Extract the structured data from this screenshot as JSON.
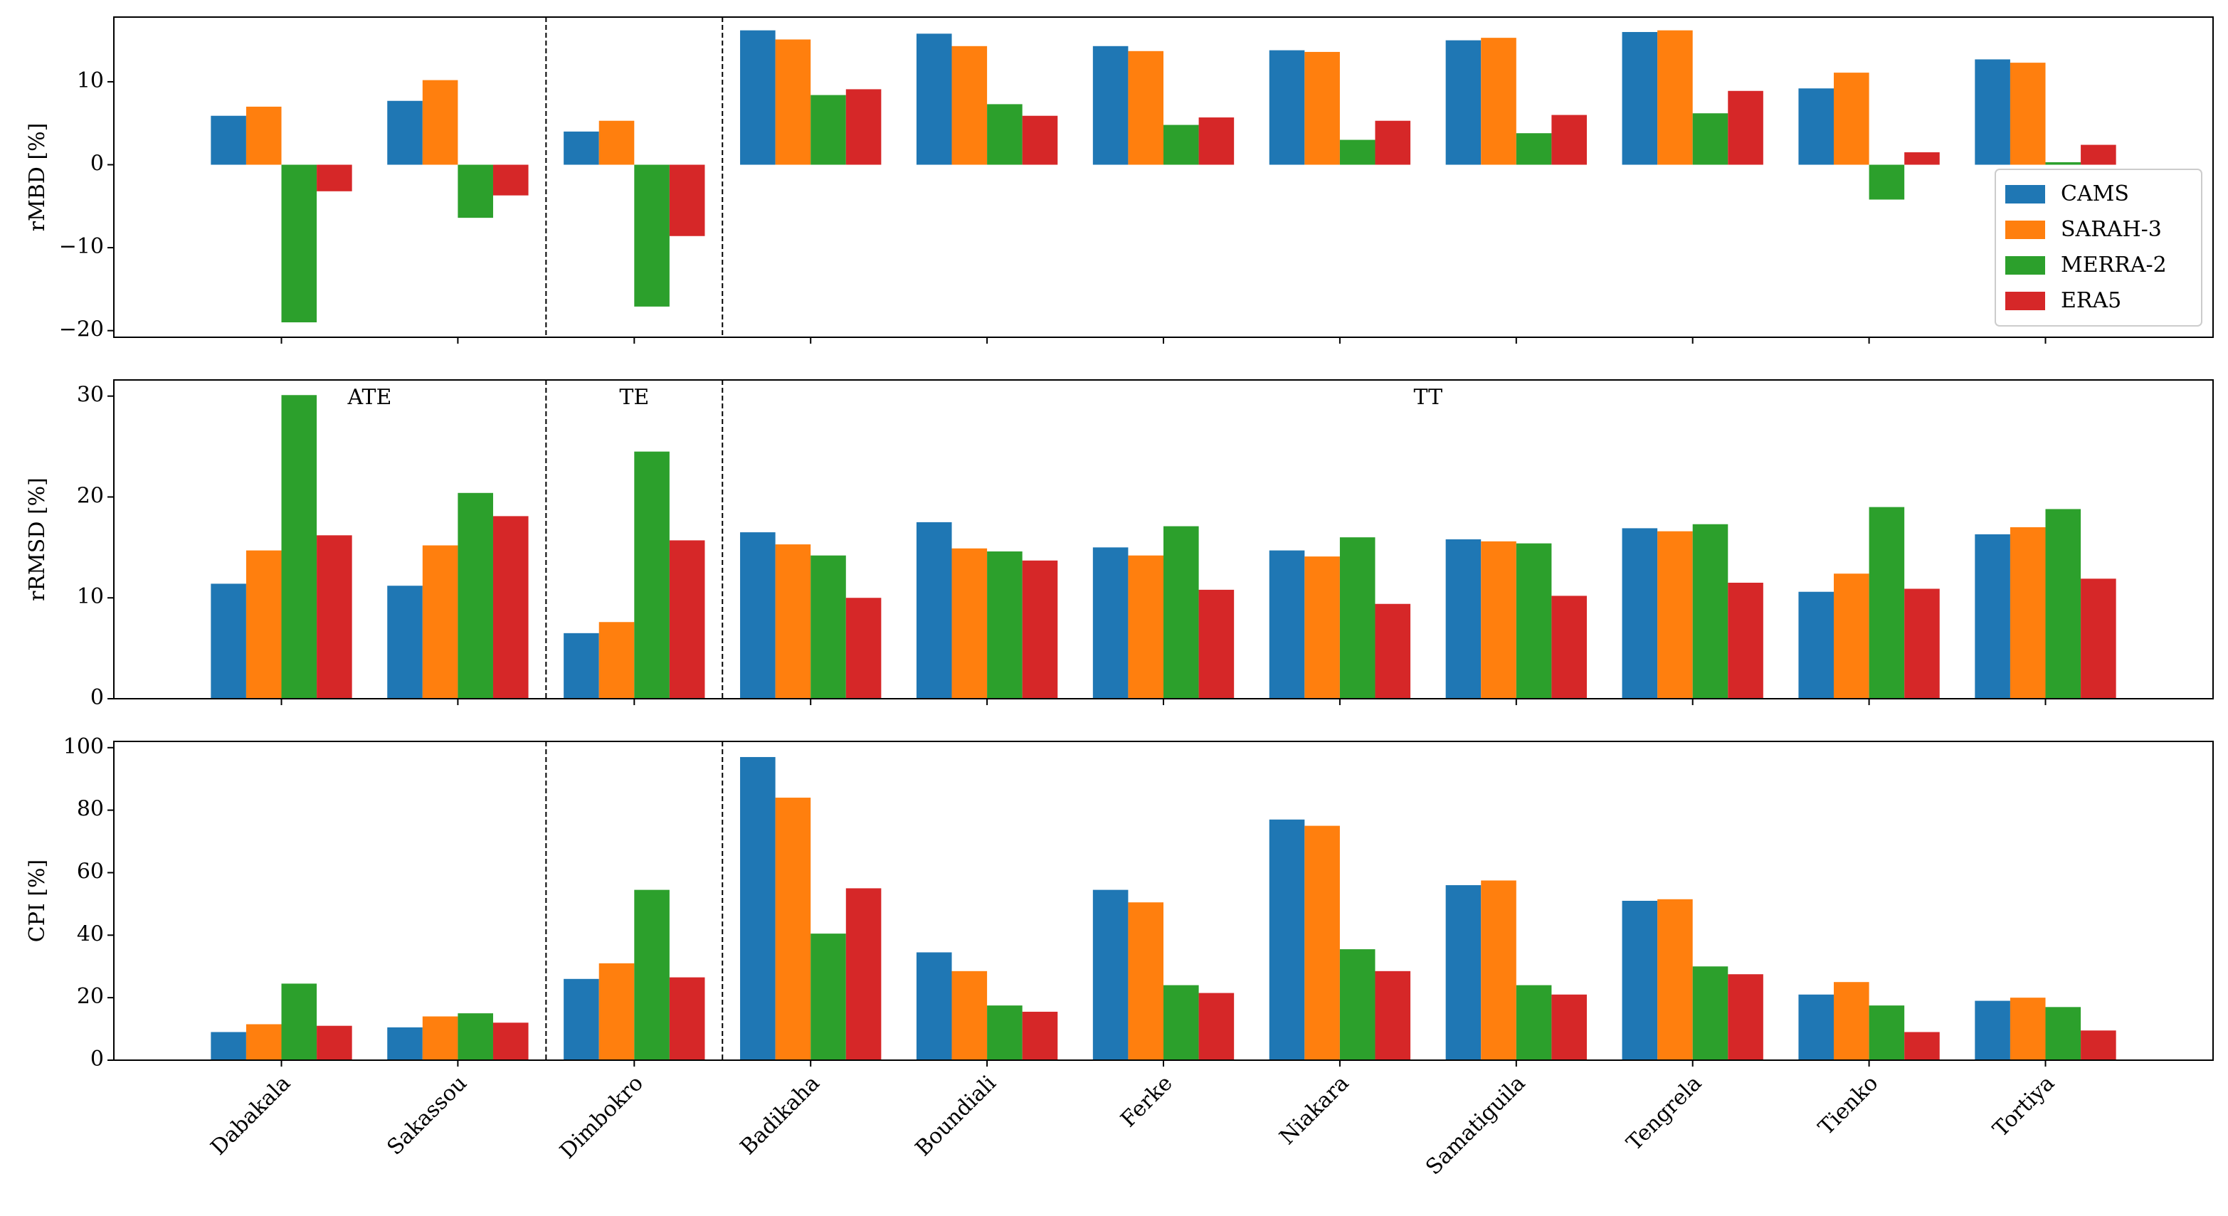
{
  "chart_data": {
    "type": "bar",
    "categories": [
      "Dabakala",
      "Sakassou",
      "Dimbokro",
      "Badikaha",
      "Boundiali",
      "Ferke",
      "Niakara",
      "Samatiguila",
      "Tengrela",
      "Tienko",
      "Tortiya"
    ],
    "groups": [
      {
        "label": "ATE",
        "count": 2
      },
      {
        "label": "TE",
        "count": 1
      },
      {
        "label": "TT",
        "count": 8
      }
    ],
    "legend_loc": "lower right",
    "series": [
      {
        "name": "CAMS",
        "color": "#1f77b4"
      },
      {
        "name": "SARAH-3",
        "color": "#ff7f0e"
      },
      {
        "name": "MERRA-2",
        "color": "#2ca02c"
      },
      {
        "name": "ERA5",
        "color": "#d62728"
      }
    ],
    "panels": [
      {
        "ylabel": "rMBD [%]",
        "ylim": [
          -20.8,
          17.8
        ],
        "yticks": [
          {
            "value": -20,
            "label": "−20"
          },
          {
            "value": -10,
            "label": "−10"
          },
          0,
          10
        ],
        "values": [
          [
            5.9,
            7.7,
            4.0,
            16.2,
            15.8,
            14.3,
            13.8,
            15.0,
            16.0,
            9.2,
            12.7
          ],
          [
            7.0,
            10.2,
            5.3,
            15.1,
            14.3,
            13.7,
            13.6,
            15.3,
            16.2,
            11.1,
            12.3
          ],
          [
            -19.0,
            -6.4,
            -17.1,
            8.4,
            7.3,
            4.8,
            3.0,
            3.8,
            6.2,
            -4.2,
            0.3
          ],
          [
            -3.2,
            -3.7,
            -8.6,
            9.1,
            5.9,
            5.7,
            5.3,
            6.0,
            8.9,
            1.5,
            2.4
          ]
        ]
      },
      {
        "ylabel": "rRMSD [%]",
        "ylim": [
          0,
          31.6
        ],
        "yticks": [
          0,
          10,
          20,
          30
        ],
        "values": [
          [
            11.4,
            11.2,
            6.5,
            16.5,
            17.5,
            15.0,
            14.7,
            15.8,
            16.9,
            10.6,
            16.3
          ],
          [
            14.7,
            15.2,
            7.6,
            15.3,
            14.9,
            14.2,
            14.1,
            15.6,
            16.6,
            12.4,
            17.0
          ],
          [
            30.1,
            20.4,
            24.5,
            14.2,
            14.6,
            17.1,
            16.0,
            15.4,
            17.3,
            19.0,
            18.8
          ],
          [
            16.2,
            18.1,
            15.7,
            10.0,
            13.7,
            10.8,
            9.4,
            10.2,
            11.5,
            10.9,
            11.9
          ]
        ]
      },
      {
        "ylabel": "CPI [%]",
        "ylim": [
          0,
          102
        ],
        "yticks": [
          0,
          20,
          40,
          60,
          80,
          100
        ],
        "values": [
          [
            9,
            10.5,
            26,
            97,
            34.5,
            54.5,
            77,
            56,
            51,
            21,
            19
          ],
          [
            11.5,
            14,
            31,
            84,
            28.5,
            50.5,
            75,
            57.5,
            51.5,
            25,
            20
          ],
          [
            24.5,
            15,
            54.5,
            40.5,
            17.5,
            24,
            35.5,
            24,
            30,
            17.5,
            17
          ],
          [
            11,
            12,
            26.5,
            55,
            15.5,
            21.5,
            28.5,
            21,
            27.5,
            9,
            9.5
          ]
        ]
      }
    ]
  }
}
